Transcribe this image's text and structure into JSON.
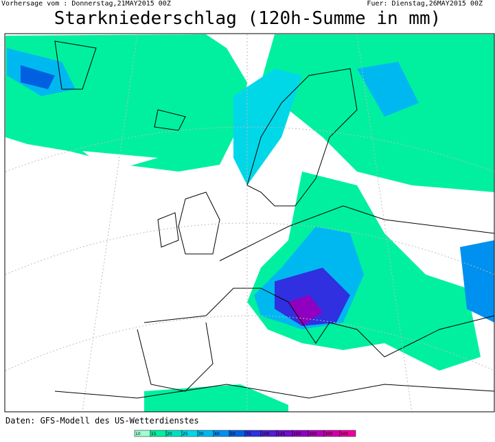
{
  "header": {
    "left": "Vorhersage vom : Donnerstag,21MAY2015 00Z",
    "right": "Fuer: Dienstag,26MAY2015 00Z",
    "title": "Starkniederschlag (120h-Summe in mm)"
  },
  "footer": {
    "source": "Daten: GFS-Modell des US-Wetterdienstes"
  },
  "legend": {
    "items": [
      {
        "label": 10,
        "color": "#a0ffd0"
      },
      {
        "label": 15,
        "color": "#00f0a0"
      },
      {
        "label": 20,
        "color": "#00e0c0"
      },
      {
        "label": 25,
        "color": "#00d8e8"
      },
      {
        "label": 30,
        "color": "#00b8f0"
      },
      {
        "label": 40,
        "color": "#0090f0"
      },
      {
        "label": 50,
        "color": "#0060e0"
      },
      {
        "label": 75,
        "color": "#3030e0"
      },
      {
        "label": 100,
        "color": "#5020d0"
      },
      {
        "label": 125,
        "color": "#7010c8"
      },
      {
        "label": 150,
        "color": "#9000c0"
      },
      {
        "label": 200,
        "color": "#b000b8"
      },
      {
        "label": 300,
        "color": "#d000a8"
      },
      {
        "label": 500,
        "color": "#f000a0"
      }
    ]
  }
}
